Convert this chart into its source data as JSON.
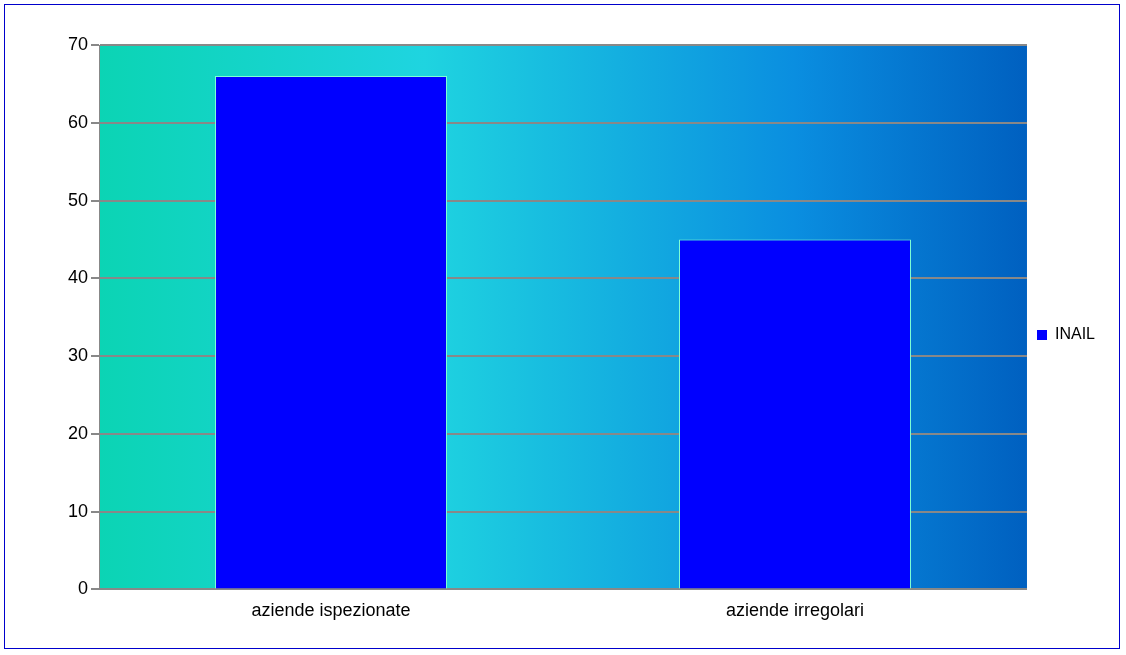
{
  "chart_data": {
    "type": "bar",
    "categories": [
      "aziende ispezionate",
      "aziende irregolari"
    ],
    "series": [
      {
        "name": "INAIL",
        "color": "#0000ff",
        "values": [
          66,
          45
        ]
      }
    ],
    "ylim": [
      0,
      70
    ],
    "yticks": [
      0,
      10,
      20,
      30,
      40,
      50,
      60,
      70
    ],
    "grid": "y",
    "legend": "right"
  }
}
